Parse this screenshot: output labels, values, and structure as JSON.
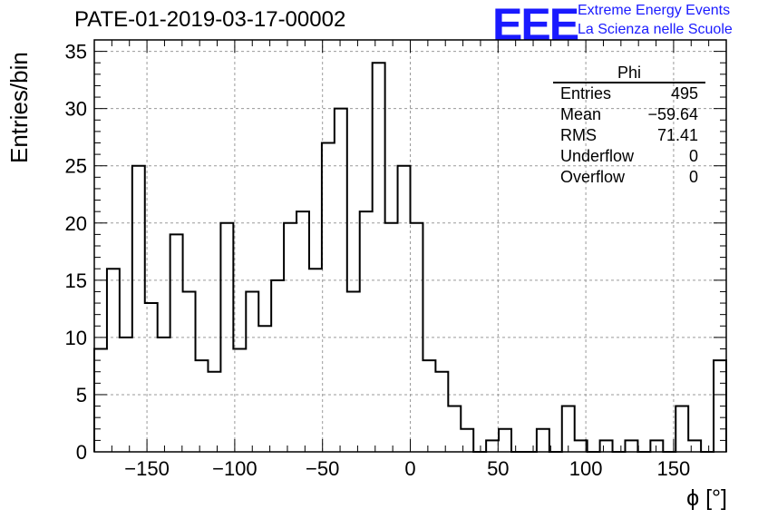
{
  "header": {
    "title": "PATE-01-2019-03-17-00002",
    "logo_text": "EEE",
    "logo_line1": "Extreme Energy Events",
    "logo_line2": "La Scienza nelle Scuole"
  },
  "stats_box": {
    "title": "Phi",
    "rows": [
      {
        "label": "Entries",
        "value": "495"
      },
      {
        "label": "Mean",
        "value": "−59.64"
      },
      {
        "label": "RMS",
        "value": "71.41"
      },
      {
        "label": "Underflow",
        "value": "0"
      },
      {
        "label": "Overflow",
        "value": "0"
      }
    ]
  },
  "chart_data": {
    "type": "bar",
    "style": "step-histogram",
    "xlabel": "ϕ [°]",
    "ylabel": "Entries/bin",
    "xlim": [
      -180,
      180
    ],
    "ylim": [
      0,
      36
    ],
    "bin_width": 7.2,
    "x_ticks": [
      -150,
      -100,
      -50,
      0,
      50,
      100,
      150
    ],
    "x_tick_labels": [
      "−150",
      "−100",
      "−50",
      "0",
      "50",
      "100",
      "150"
    ],
    "y_ticks": [
      0,
      5,
      10,
      15,
      20,
      25,
      30,
      35
    ],
    "y_tick_labels": [
      "0",
      "5",
      "10",
      "15",
      "20",
      "25",
      "30",
      "35"
    ],
    "grid": true,
    "line_color": "#000000",
    "values": [
      9,
      16,
      10,
      25,
      13,
      10,
      19,
      14,
      8,
      7,
      20,
      9,
      14,
      11,
      15,
      20,
      21,
      16,
      27,
      30,
      14,
      21,
      34,
      20,
      25,
      20,
      8,
      7,
      4,
      2,
      0,
      1,
      2,
      0,
      0,
      2,
      0,
      4,
      1,
      0,
      1,
      0,
      1,
      0,
      1,
      0,
      4,
      1,
      0,
      8
    ]
  }
}
